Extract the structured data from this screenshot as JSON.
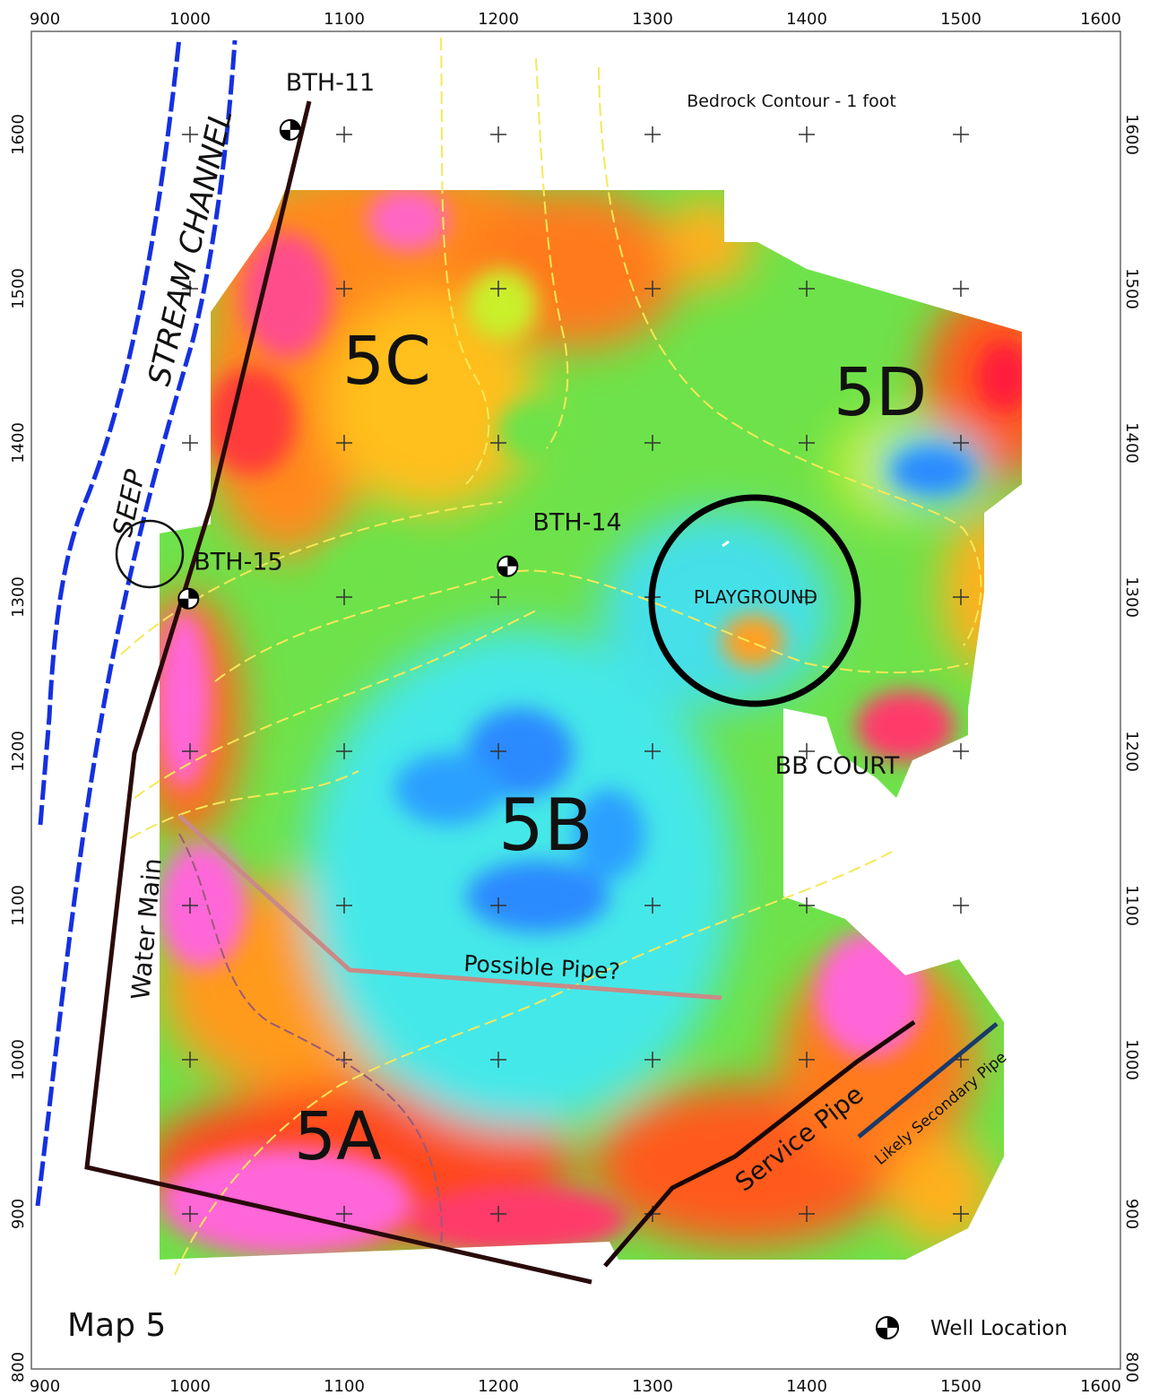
{
  "map": {
    "x_ticks": [
      "900",
      "1000",
      "1100",
      "1200",
      "1300",
      "1400",
      "1500",
      "1600"
    ],
    "y_ticks": [
      "800",
      "900",
      "1000",
      "1100",
      "1200",
      "1300",
      "1400",
      "1500",
      "1600"
    ],
    "x_range": [
      900,
      1600
    ],
    "y_range": [
      800,
      1660
    ]
  },
  "labels": {
    "legend_title": "Bedrock Contour - 1 foot",
    "stream_channel": "STREAM CHANNEL",
    "seep": "SEEP",
    "water_main": "Water Main",
    "zone_5a": "5A",
    "zone_5b": "5B",
    "zone_5c": "5C",
    "zone_5d": "5D",
    "playground": "PLAYGROUND",
    "bb_court": "BB COURT",
    "possible_pipe": "Possible Pipe?",
    "service_pipe": "Service Pipe",
    "secondary_pipe": "Likely Secondary Pipe",
    "map_title": "Map 5",
    "well_legend": "Well Location"
  },
  "wells": [
    {
      "label": "BTH-11",
      "x": 1065,
      "y": 1603
    },
    {
      "label": "BTH-14",
      "x": 1206,
      "y": 1320
    },
    {
      "label": "BTH-15",
      "x": 999,
      "y": 1299
    }
  ],
  "colors": {
    "stream": "#1530e0",
    "water_main": "#2a0a0a",
    "service_pipe": "#1a0606",
    "secondary_pipe": "#1a3a6a",
    "possible_pipe": "#c98a86",
    "contour": "#f5e85a"
  }
}
